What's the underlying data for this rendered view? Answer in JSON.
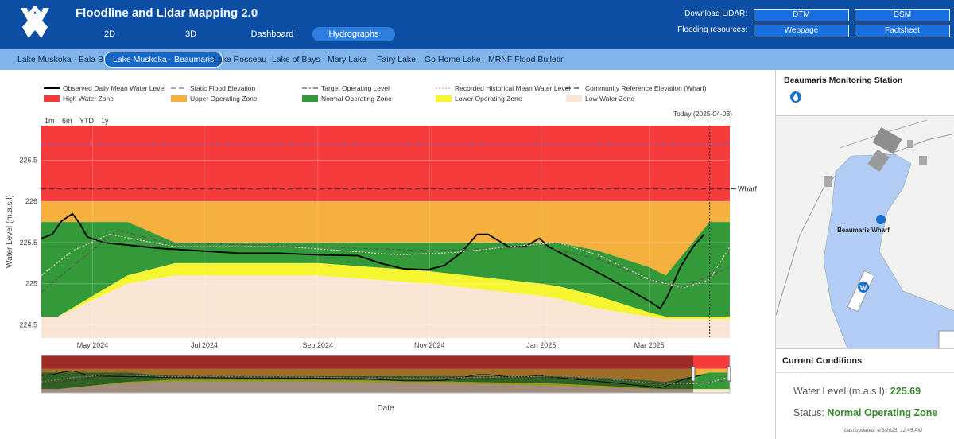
{
  "header": {
    "title": "Floodline and Lidar Mapping 2.0",
    "tabs": [
      "2D",
      "3D",
      "Dashboard",
      "Hydrographs"
    ],
    "active_tab": 3,
    "download_label": "Download LiDAR:",
    "download_buttons": [
      "DTM",
      "DSM"
    ],
    "resources_label": "Flooding resources:",
    "resources_buttons": [
      "Webpage",
      "Factsheet"
    ]
  },
  "lake_tabs": {
    "items": [
      "Lake Muskoka - Bala Bay",
      "Lake Muskoka - Beaumaris",
      "Lake Rosseau",
      "Lake of Bays",
      "Mary Lake",
      "Fairy Lake",
      "Go Home Lake",
      "MRNF Flood Bulletin"
    ],
    "active": 1
  },
  "chart_data": {
    "type": "line",
    "y_label": "Water Level (m.a.s.l)",
    "x_label": "Date",
    "range_buttons": [
      "1m",
      "6m",
      "YTD",
      "1y"
    ],
    "today": "2025-04-03",
    "today_label": "Today (2025-04-03)",
    "xlim": [
      "2024-04-03",
      "2025-04-14"
    ],
    "xticks": [
      {
        "value": "2024-05-01",
        "label": "May 2024"
      },
      {
        "value": "2024-07-01",
        "label": "Jul 2024"
      },
      {
        "value": "2024-09-01",
        "label": "Sep 2024"
      },
      {
        "value": "2024-11-01",
        "label": "Nov 2024"
      },
      {
        "value": "2025-01-01",
        "label": "Jan 2025"
      },
      {
        "value": "2025-03-01",
        "label": "Mar 2025"
      }
    ],
    "ylim": [
      224.34,
      226.92
    ],
    "yticks": [
      224.5,
      225,
      225.5,
      226,
      226.5
    ],
    "grid": true,
    "zone_x": [
      "2024-04-03",
      "2024-04-12",
      "2024-05-20",
      "2024-06-15",
      "2024-09-01",
      "2024-11-01",
      "2025-01-01",
      "2025-01-10",
      "2025-02-01",
      "2025-03-01",
      "2025-03-10",
      "2025-04-03",
      "2025-04-14"
    ],
    "zones": [
      {
        "name": "High Water Zone",
        "color": "#f53b3b",
        "values": [
          226,
          226,
          226,
          226,
          226,
          226,
          226,
          226,
          226,
          226,
          226,
          226,
          226
        ]
      },
      {
        "name": "Upper Operating Zone",
        "color": "#f5b03e",
        "values": [
          225.75,
          225.75,
          225.75,
          225.5,
          225.5,
          225.5,
          225.5,
          225.5,
          225.4,
          225.2,
          225.1,
          225.75,
          225.75
        ]
      },
      {
        "name": "Normal Operating Zone",
        "color": "#349a39",
        "values": [
          224.6,
          224.6,
          225.1,
          225.25,
          225.25,
          225.15,
          225.0,
          224.97,
          224.85,
          224.65,
          224.6,
          224.6,
          224.6
        ]
      },
      {
        "name": "Lower Operating Zone",
        "color": "#f5f532",
        "values": [
          224.6,
          224.6,
          225.0,
          225.1,
          225.1,
          225.0,
          224.85,
          224.82,
          224.7,
          224.6,
          224.57,
          224.57,
          224.57
        ]
      },
      {
        "name": "Low Water Zone",
        "color": "#f8e5d3"
      }
    ],
    "lines": [
      {
        "name": "Observed Daily Mean Water Level",
        "color": "#000000",
        "dash": "solid",
        "x": [
          "2024-04-03",
          "2024-04-09",
          "2024-04-14",
          "2024-04-20",
          "2024-04-24",
          "2024-04-28",
          "2024-05-07",
          "2024-05-20",
          "2024-06-06",
          "2024-06-28",
          "2024-07-20",
          "2024-08-11",
          "2024-09-01",
          "2024-09-23",
          "2024-10-05",
          "2024-10-18",
          "2024-10-31",
          "2024-11-09",
          "2024-11-18",
          "2024-11-27",
          "2024-12-03",
          "2024-12-14",
          "2024-12-23",
          "2024-12-31",
          "2025-01-05",
          "2025-01-18",
          "2025-02-04",
          "2025-02-17",
          "2025-02-28",
          "2025-03-07",
          "2025-03-11",
          "2025-03-18",
          "2025-03-25",
          "2025-03-31"
        ],
        "values": [
          225.55,
          225.6,
          225.76,
          225.85,
          225.73,
          225.57,
          225.5,
          225.47,
          225.43,
          225.4,
          225.37,
          225.37,
          225.35,
          225.34,
          225.25,
          225.18,
          225.17,
          225.22,
          225.37,
          225.6,
          225.6,
          225.45,
          225.45,
          225.55,
          225.45,
          225.3,
          225.1,
          224.94,
          224.8,
          224.7,
          224.85,
          225.2,
          225.45,
          225.6
        ]
      },
      {
        "name": "Static Flood Elevation",
        "color": "#8a62b3",
        "dash": "dash",
        "level": 226.7
      },
      {
        "name": "Target Operating Level",
        "color": "#555555",
        "dash": "dashdot",
        "x": [
          "2024-04-03",
          "2024-04-25",
          "2024-05-15",
          "2024-06-10",
          "2024-09-01",
          "2024-11-01",
          "2025-01-01",
          "2025-02-01",
          "2025-03-01",
          "2025-03-20",
          "2025-04-03",
          "2025-04-14"
        ],
        "values": [
          224.9,
          225.3,
          225.65,
          225.5,
          225.45,
          225.4,
          225.45,
          225.3,
          225.05,
          224.95,
          225.1,
          225.2
        ]
      },
      {
        "name": "Recorded Historical Mean Water Level",
        "color": "#f4c4d2",
        "dash": "dot",
        "x": [
          "2024-04-03",
          "2024-04-20",
          "2024-05-10",
          "2024-06-15",
          "2024-08-15",
          "2024-09-15",
          "2024-10-15",
          "2024-11-15",
          "2024-12-15",
          "2025-01-10",
          "2025-02-01",
          "2025-03-01",
          "2025-03-20",
          "2025-04-03",
          "2025-04-14"
        ],
        "values": [
          225.1,
          225.4,
          225.6,
          225.45,
          225.45,
          225.4,
          225.35,
          225.38,
          225.45,
          225.5,
          225.35,
          225.05,
          224.95,
          225.05,
          225.45
        ]
      },
      {
        "name": "Community Reference Elevation (Wharf)",
        "color": "#333333",
        "dash": "dash",
        "level": 226.15,
        "label": "Wharf"
      }
    ]
  },
  "panel": {
    "title": "Beaumaris Monitoring Station",
    "map_label": "Beaumaris Wharf",
    "wharf_marker": "W",
    "conditions_title": "Current Conditions",
    "water_level_label": "Water Level (m.a.s.l):",
    "water_level": "225.69",
    "status_label": "Status:",
    "status": "Normal Operating Zone",
    "updated": "Last updated: 4/3/2025, 12:45 PM"
  }
}
